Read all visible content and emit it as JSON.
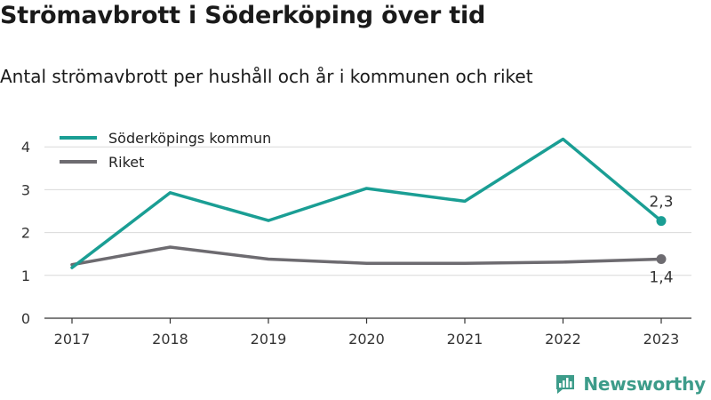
{
  "chart_data": {
    "type": "line",
    "title": "Strömavbrott i Söderköping över tid",
    "subtitle": "Antal strömavbrott per hushåll och år i kommunen och riket",
    "categories": [
      "2017",
      "2018",
      "2019",
      "2020",
      "2021",
      "2022",
      "2023"
    ],
    "series": [
      {
        "name": "Söderköpings kommun",
        "color": "#1a9e94",
        "values": [
          1.18,
          2.93,
          2.28,
          3.03,
          2.73,
          4.18,
          2.27
        ],
        "end_label": "2,3"
      },
      {
        "name": "Riket",
        "color": "#6d6b70",
        "values": [
          1.25,
          1.66,
          1.38,
          1.28,
          1.28,
          1.31,
          1.38
        ],
        "end_label": "1,4"
      }
    ],
    "ylim": [
      0,
      4.6
    ],
    "yticks": [
      "0",
      "1",
      "2",
      "3",
      "4"
    ],
    "grid": true,
    "legend": "top-left"
  },
  "brand": {
    "name": "Newsworthy",
    "icon": "newsworthy-logo-icon",
    "color": "#3d9c8a"
  }
}
